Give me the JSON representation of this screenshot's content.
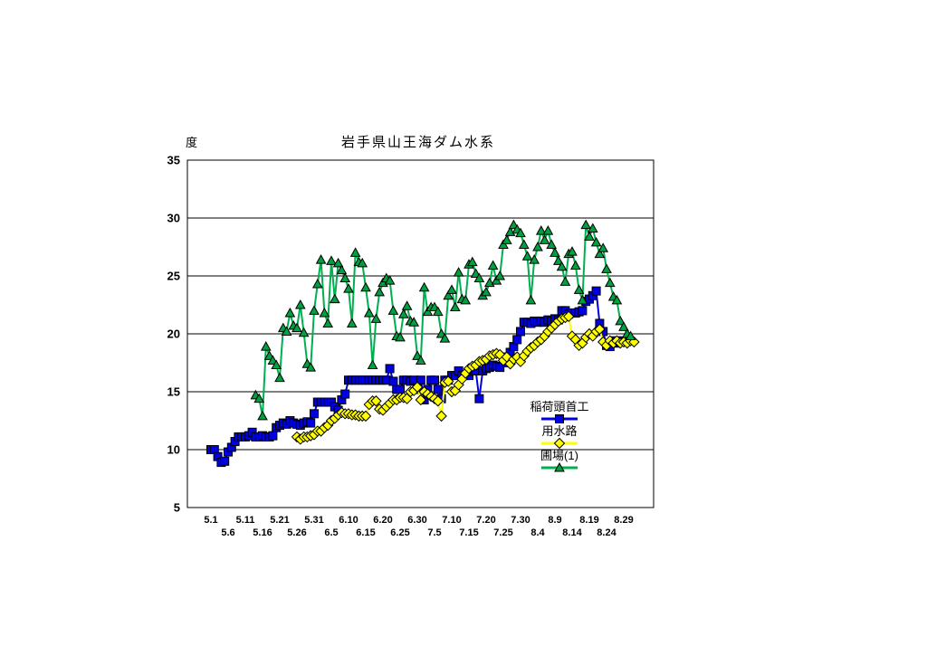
{
  "page": {
    "background": "#FFFFFF"
  },
  "chart_data": {
    "type": "line",
    "title": "岩手県山王海ダム水系",
    "ylabel": "度",
    "xlabel": "",
    "ylim": [
      5,
      35
    ],
    "yticks": [
      35,
      30,
      25,
      20,
      15,
      10,
      5
    ],
    "grid": "horizontal",
    "legend_position": "inside-lower-right",
    "x_is_dates_month_dot_day": true,
    "xtick_day_interval": 5,
    "xticks": [
      "5.1",
      "5.6",
      "5.11",
      "5.16",
      "5.21",
      "5.26",
      "5.31",
      "6.5",
      "6.10",
      "6.15",
      "6.20",
      "6.25",
      "6.30",
      "7.5",
      "7.10",
      "7.15",
      "7.20",
      "7.25",
      "7.30",
      "8.4",
      "8.9",
      "8.14",
      "8.19",
      "8.24",
      "8.29"
    ],
    "axis_color": "#000000",
    "series": [
      {
        "name": "稲荷頭首工",
        "marker": "square",
        "color": "#0000E0",
        "marker_fill": "#0000E0",
        "start_day": 0,
        "start_date": "5.1",
        "values": [
          10.0,
          10.0,
          9.4,
          8.9,
          9.0,
          9.8,
          10.2,
          10.7,
          11.1,
          11.1,
          11.1,
          11.2,
          11.5,
          11.1,
          11.1,
          11.2,
          11.1,
          11.1,
          11.2,
          11.9,
          12.1,
          12.3,
          12.2,
          12.5,
          12.3,
          12.2,
          12.1,
          12.3,
          12.4,
          12.3,
          13.1,
          14.1,
          14.1,
          14.1,
          14.1,
          14.1,
          13.7,
          13.4,
          14.3,
          14.8,
          16.0,
          16.0,
          16.0,
          16.0,
          16.0,
          16.0,
          16.0,
          16.0,
          16.0,
          16.0,
          16.0,
          16.0,
          17.0,
          15.9,
          15.2,
          15.2,
          16.0,
          16.0,
          15.9,
          16.0,
          15.2,
          16.0,
          14.3,
          15.2,
          16.0,
          16.0,
          15.2,
          14.4,
          16.0,
          16.0,
          16.4,
          16.4,
          16.8,
          16.4,
          16.4,
          16.4,
          16.8,
          16.8,
          14.4,
          16.8,
          17.0,
          17.1,
          17.3,
          17.2,
          17.1,
          17.5,
          18.0,
          18.4,
          18.9,
          19.5,
          20.2,
          21.0,
          21.0,
          20.9,
          21.1,
          21.0,
          21.1,
          21.0,
          21.2,
          21.1,
          21.3,
          21.2,
          22.0,
          22.0,
          21.7,
          21.8,
          21.8,
          21.9,
          22.0,
          22.8,
          23.0,
          23.3,
          23.7,
          20.9,
          20.2,
          19.0,
          18.9,
          19.4,
          19.2,
          19.4,
          19.3
        ]
      },
      {
        "name": "用水路",
        "marker": "diamond",
        "color": "#FFFF00",
        "marker_fill": "#FFFF00",
        "start_day": 25,
        "start_date": "5.26",
        "values": [
          11.1,
          10.9,
          11.1,
          11.1,
          11.2,
          11.3,
          11.6,
          11.6,
          11.9,
          12.1,
          12.5,
          12.7,
          13.0,
          13.2,
          13.1,
          13.1,
          13.0,
          13.0,
          12.9,
          12.9,
          12.9,
          13.9,
          14.2,
          14.2,
          13.5,
          13.4,
          13.7,
          14.0,
          14.3,
          14.3,
          14.5,
          14.5,
          14.4,
          15.0,
          15.1,
          15.4,
          14.3,
          15.0,
          14.8,
          14.6,
          14.4,
          14.2,
          12.9,
          15.8,
          15.9,
          15.0,
          15.1,
          15.6,
          16.1,
          16.6,
          17.0,
          17.2,
          17.3,
          17.6,
          17.7,
          17.8,
          18.1,
          18.2,
          18.3,
          18.2,
          17.7,
          18.0,
          17.4,
          17.8,
          18.0,
          17.6,
          18.1,
          18.5,
          18.8,
          19.0,
          19.3,
          19.5,
          19.8,
          20.2,
          20.5,
          20.8,
          21.1,
          21.3,
          21.4,
          21.5,
          19.8,
          19.5,
          19.0,
          19.2,
          19.7,
          20.0,
          19.8,
          20.2,
          20.4,
          19.3,
          19.0,
          19.4,
          19.2,
          19.4,
          19.2,
          19.3,
          19.2,
          19.4,
          19.3
        ]
      },
      {
        "name": "圃場(1)",
        "marker": "triangle",
        "color": "#00B050",
        "marker_fill": "#00A040",
        "start_day": 13,
        "start_date": "5.14",
        "values": [
          14.7,
          14.4,
          12.9,
          18.9,
          18.1,
          17.7,
          17.3,
          16.2,
          20.5,
          20.2,
          21.8,
          20.7,
          20.5,
          22.5,
          20.1,
          17.4,
          17.1,
          22.0,
          24.3,
          26.4,
          21.8,
          20.9,
          26.3,
          23.0,
          26.1,
          25.5,
          24.8,
          23.9,
          20.9,
          27.0,
          26.2,
          26.1,
          24.0,
          21.8,
          17.3,
          21.3,
          23.6,
          24.4,
          24.8,
          24.6,
          22.0,
          19.8,
          19.7,
          21.7,
          22.4,
          21.1,
          21.0,
          18.1,
          17.7,
          24.0,
          21.9,
          22.3,
          22.3,
          21.9,
          20.0,
          19.6,
          23.3,
          23.8,
          22.3,
          25.3,
          23.0,
          22.9,
          26.0,
          26.2,
          25.2,
          24.8,
          23.3,
          23.6,
          24.4,
          25.9,
          24.6,
          25.0,
          27.7,
          28.1,
          28.8,
          29.4,
          29.0,
          28.7,
          27.7,
          26.7,
          22.9,
          26.4,
          27.5,
          28.9,
          28.1,
          28.9,
          27.7,
          27.0,
          26.3,
          25.8,
          24.5,
          26.9,
          27.1,
          25.9,
          23.8,
          22.9,
          29.4,
          28.4,
          29.1,
          27.9,
          26.9,
          27.4,
          25.6,
          24.4,
          23.2,
          22.9,
          21.1,
          20.6,
          20.0,
          19.8
        ]
      }
    ]
  }
}
